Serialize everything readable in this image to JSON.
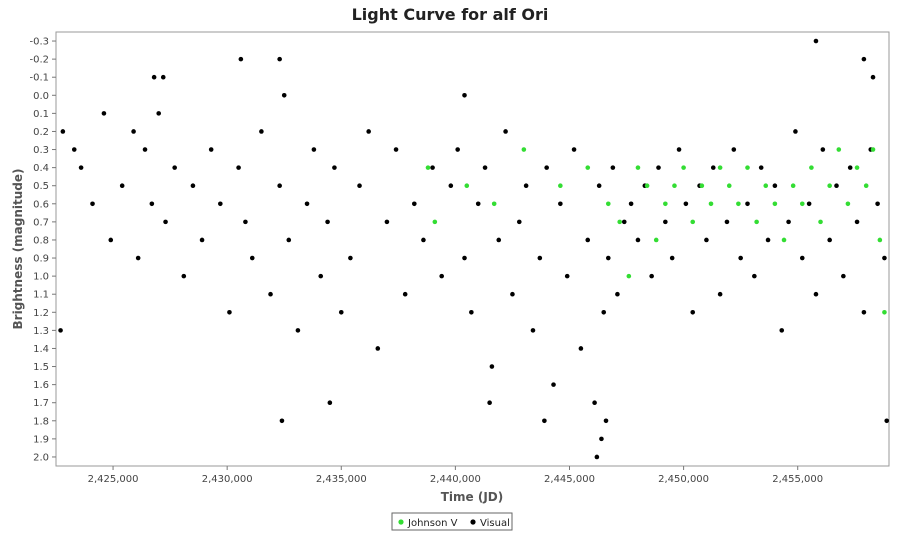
{
  "chart_data": {
    "type": "scatter",
    "title": "Light Curve for alf Ori",
    "xlabel": "Time (JD)",
    "ylabel": "Brightness (magnitude)",
    "xlim": [
      2422500,
      2459000
    ],
    "ylim": [
      -0.35,
      2.05
    ],
    "y_inverted": true,
    "grid": false,
    "legend_position": "bottom-center",
    "x_ticks": [
      2425000,
      2430000,
      2435000,
      2440000,
      2445000,
      2450000,
      2455000
    ],
    "x_tick_labels": [
      "2,425,000",
      "2,430,000",
      "2,435,000",
      "2,440,000",
      "2,445,000",
      "2,450,000",
      "2,455,000"
    ],
    "y_ticks": [
      -0.3,
      -0.2,
      -0.1,
      0.0,
      0.1,
      0.2,
      0.3,
      0.4,
      0.5,
      0.6,
      0.7,
      0.8,
      0.9,
      1.0,
      1.1,
      1.2,
      1.3,
      1.4,
      1.5,
      1.6,
      1.7,
      1.8,
      1.9,
      2.0
    ],
    "y_tick_labels": [
      "-0.3",
      "-0.2",
      "-0.1",
      "0.0",
      "0.1",
      "0.2",
      "0.3",
      "0.4",
      "0.5",
      "0.6",
      "0.7",
      "0.8",
      "0.9",
      "1.0",
      "1.1",
      "1.2",
      "1.3",
      "1.4",
      "1.5",
      "1.6",
      "1.7",
      "1.8",
      "1.9",
      "2.0"
    ],
    "series": [
      {
        "name": "Visual",
        "color": "#000000",
        "x": [
          2422800,
          2423300,
          2423600,
          2424100,
          2424600,
          2424900,
          2425400,
          2425900,
          2426100,
          2426400,
          2426700,
          2427000,
          2427300,
          2427700,
          2428100,
          2428500,
          2428900,
          2429300,
          2429700,
          2430100,
          2430500,
          2430800,
          2431100,
          2431500,
          2431900,
          2432300,
          2432500,
          2432700,
          2433100,
          2433500,
          2433800,
          2434100,
          2434400,
          2434700,
          2435000,
          2435400,
          2435800,
          2436200,
          2436600,
          2437000,
          2437400,
          2437800,
          2438200,
          2438600,
          2439000,
          2439400,
          2439800,
          2440100,
          2440400,
          2440700,
          2441000,
          2441300,
          2441600,
          2441900,
          2442200,
          2442500,
          2442800,
          2443100,
          2443400,
          2443700,
          2444000,
          2444300,
          2444600,
          2444900,
          2445200,
          2445500,
          2445800,
          2446100,
          2446300,
          2446500,
          2446700,
          2446900,
          2447100,
          2447400,
          2447700,
          2448000,
          2448300,
          2448600,
          2448900,
          2449200,
          2449500,
          2449800,
          2450100,
          2450400,
          2450700,
          2451000,
          2451300,
          2451600,
          2451900,
          2452200,
          2452500,
          2452800,
          2453100,
          2453400,
          2453700,
          2454000,
          2454300,
          2454600,
          2454900,
          2455200,
          2455500,
          2455800,
          2456100,
          2456400,
          2456700,
          2457000,
          2457300,
          2457600,
          2457900,
          2458200,
          2458500,
          2458800,
          2422700,
          2426800,
          2427200,
          2430600,
          2432300,
          2440400,
          2446200,
          2446400,
          2446600,
          2455800,
          2457900,
          2458300,
          2458900,
          2443900,
          2441500,
          2434500,
          2432400
        ],
        "y": [
          0.2,
          0.3,
          0.4,
          0.6,
          0.1,
          0.8,
          0.5,
          0.2,
          0.9,
          0.3,
          0.6,
          0.1,
          0.7,
          0.4,
          1.0,
          0.5,
          0.8,
          0.3,
          0.6,
          1.2,
          0.4,
          0.7,
          0.9,
          0.2,
          1.1,
          0.5,
          0.0,
          0.8,
          1.3,
          0.6,
          0.3,
          1.0,
          0.7,
          0.4,
          1.2,
          0.9,
          0.5,
          0.2,
          1.4,
          0.7,
          0.3,
          1.1,
          0.6,
          0.8,
          0.4,
          1.0,
          0.5,
          0.3,
          0.9,
          1.2,
          0.6,
          0.4,
          1.5,
          0.8,
          0.2,
          1.1,
          0.7,
          0.5,
          1.3,
          0.9,
          0.4,
          1.6,
          0.6,
          1.0,
          0.3,
          1.4,
          0.8,
          1.7,
          0.5,
          1.2,
          0.9,
          0.4,
          1.1,
          0.7,
          0.6,
          0.8,
          0.5,
          1.0,
          0.4,
          0.7,
          0.9,
          0.3,
          0.6,
          1.2,
          0.5,
          0.8,
          0.4,
          1.1,
          0.7,
          0.3,
          0.9,
          0.6,
          1.0,
          0.4,
          0.8,
          0.5,
          1.3,
          0.7,
          0.2,
          0.9,
          0.6,
          1.1,
          0.3,
          0.8,
          0.5,
          1.0,
          0.4,
          0.7,
          1.2,
          0.3,
          0.6,
          0.9,
          1.3,
          -0.1,
          -0.1,
          -0.2,
          -0.2,
          0.0,
          2.0,
          1.9,
          1.8,
          -0.3,
          -0.2,
          -0.1,
          1.8,
          1.8,
          1.7,
          1.7,
          1.8
        ]
      },
      {
        "name": "Johnson V",
        "color": "#33dd33",
        "x": [
          2438800,
          2439100,
          2440500,
          2441700,
          2443000,
          2444600,
          2445800,
          2446700,
          2447200,
          2447600,
          2448000,
          2448400,
          2448800,
          2449200,
          2449600,
          2450000,
          2450400,
          2450800,
          2451200,
          2451600,
          2452000,
          2452400,
          2452800,
          2453200,
          2453600,
          2454000,
          2454400,
          2454800,
          2455200,
          2455600,
          2456000,
          2456400,
          2456800,
          2457200,
          2457600,
          2458000,
          2458300,
          2458600,
          2458800
        ],
        "y": [
          0.4,
          0.7,
          0.5,
          0.6,
          0.3,
          0.5,
          0.4,
          0.6,
          0.7,
          1.0,
          0.4,
          0.5,
          0.8,
          0.6,
          0.5,
          0.4,
          0.7,
          0.5,
          0.6,
          0.4,
          0.5,
          0.6,
          0.4,
          0.7,
          0.5,
          0.6,
          0.8,
          0.5,
          0.6,
          0.4,
          0.7,
          0.5,
          0.3,
          0.6,
          0.4,
          0.5,
          0.3,
          0.8,
          1.2
        ]
      }
    ]
  }
}
